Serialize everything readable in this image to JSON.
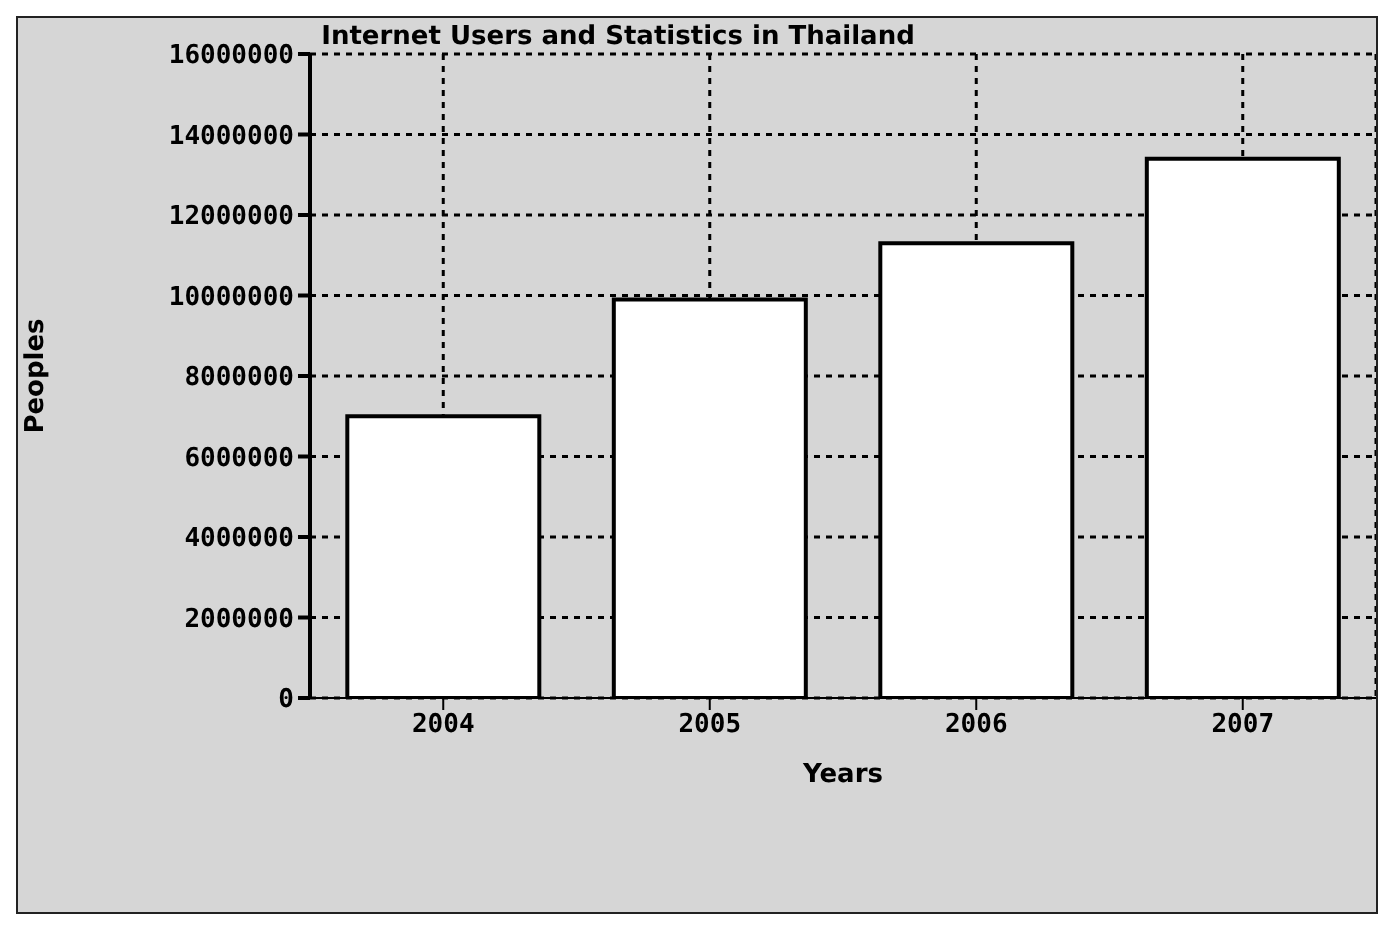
{
  "chart_data": {
    "type": "bar",
    "title": "Internet Users and Statistics in Thailand",
    "xlabel": "Years",
    "ylabel": "Peoples",
    "categories": [
      "2004",
      "2005",
      "2006",
      "2007"
    ],
    "values": [
      7000000,
      9900000,
      11300000,
      13400000
    ],
    "color": "#ffffff",
    "ylim": [
      0,
      16000000
    ],
    "yticks": [
      0,
      2000000,
      4000000,
      6000000,
      8000000,
      10000000,
      12000000,
      14000000,
      16000000
    ],
    "grid": true
  }
}
